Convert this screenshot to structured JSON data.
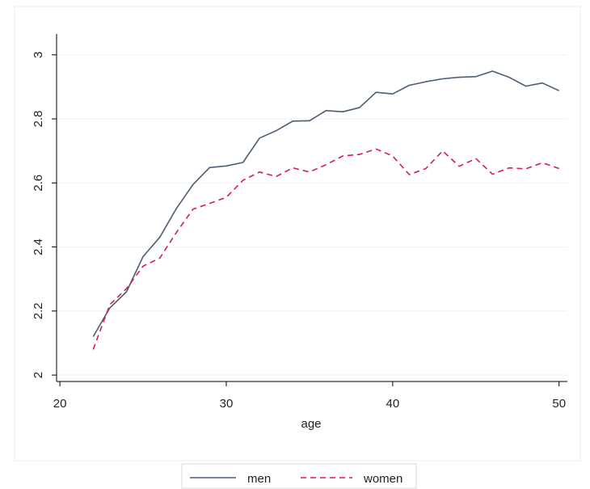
{
  "chart_data": {
    "type": "line",
    "title": "",
    "xlabel": "age",
    "ylabel": "",
    "xlim": [
      19.8,
      50.5
    ],
    "ylim": [
      1.98,
      3.05
    ],
    "xticks": [
      20,
      30,
      40,
      50
    ],
    "yticks": [
      2,
      2.2,
      2.4,
      2.6,
      2.8,
      3
    ],
    "xtick_labels": [
      "20",
      "30",
      "40",
      "50"
    ],
    "ytick_labels": [
      "2",
      "2.2",
      "2.4",
      "2.6",
      "2.8",
      "3"
    ],
    "grid": "horizontal",
    "legend": "bottom",
    "x": [
      22,
      23,
      24,
      25,
      26,
      27,
      28,
      29,
      30,
      31,
      32,
      33,
      34,
      35,
      36,
      37,
      38,
      39,
      40,
      41,
      42,
      43,
      44,
      45,
      46,
      47,
      48,
      49,
      50
    ],
    "series": [
      {
        "name": "men",
        "color": "#4b5d73",
        "style": "solid",
        "values": [
          2.12,
          2.21,
          2.26,
          2.37,
          2.43,
          2.52,
          2.595,
          2.648,
          2.653,
          2.664,
          2.74,
          2.763,
          2.793,
          2.794,
          2.826,
          2.822,
          2.835,
          2.883,
          2.878,
          2.905,
          2.916,
          2.925,
          2.93,
          2.932,
          2.949,
          2.93,
          2.902,
          2.912,
          2.888
        ]
      },
      {
        "name": "women",
        "color": "#d41a5b",
        "style": "dashed",
        "values": [
          2.08,
          2.22,
          2.27,
          2.34,
          2.365,
          2.445,
          2.518,
          2.536,
          2.555,
          2.608,
          2.634,
          2.62,
          2.647,
          2.634,
          2.657,
          2.684,
          2.689,
          2.706,
          2.684,
          2.626,
          2.645,
          2.7,
          2.652,
          2.676,
          2.627,
          2.647,
          2.644,
          2.663,
          2.645
        ]
      }
    ]
  },
  "colors": {
    "plot_frame": "#ebeef2",
    "axis": "#000000",
    "grid": "#eaf0f6"
  }
}
